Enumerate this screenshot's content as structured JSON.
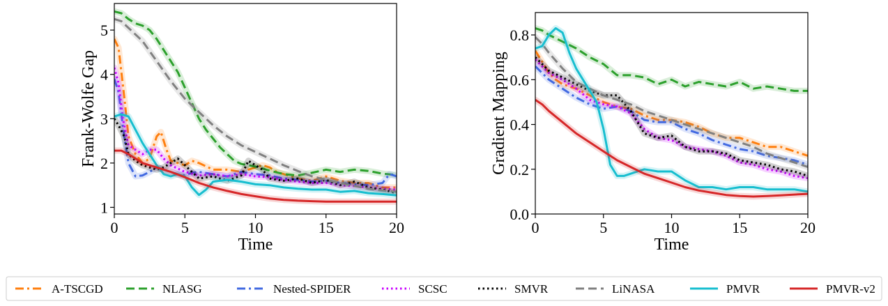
{
  "legend": {
    "position": "bottom",
    "entries": [
      {
        "name": "A-TSCGD",
        "color": "#ff7f0e",
        "dash": "dashdot"
      },
      {
        "name": "NLASG",
        "color": "#2ca02c",
        "dash": "dashed"
      },
      {
        "name": "Nested-SPIDER",
        "color": "#4169e1",
        "dash": "dashdot"
      },
      {
        "name": "SCSC",
        "color": "#c800ff",
        "dash": "dotted"
      },
      {
        "name": "SMVR",
        "color": "#000000",
        "dash": "dotted"
      },
      {
        "name": "LiNASA",
        "color": "#808080",
        "dash": "dashed"
      },
      {
        "name": "PMVR",
        "color": "#17becf",
        "dash": "solid"
      },
      {
        "name": "PMVR-v2",
        "color": "#d62728",
        "dash": "solid"
      }
    ]
  },
  "chart_data": [
    {
      "type": "line",
      "xlabel": "Time",
      "ylabel": "Frank-Wolfe Gap",
      "xlim": [
        0,
        20
      ],
      "ylim": [
        0.85,
        5.6
      ],
      "xticks": [
        0,
        5,
        10,
        15,
        20
      ],
      "yticks": [
        1,
        2,
        3,
        4,
        5
      ],
      "grid": false,
      "series": [
        {
          "name": "A-TSCGD",
          "x": [
            0,
            0.3,
            0.7,
            1,
            1.5,
            2,
            2.5,
            3,
            3.3,
            3.7,
            4,
            4.5,
            5,
            5.5,
            6,
            7,
            8,
            9,
            10,
            10.5,
            11,
            11.5,
            12,
            13,
            14,
            15,
            16,
            17,
            18,
            19,
            20
          ],
          "y": [
            4.8,
            4.6,
            3.5,
            2.6,
            2.2,
            2.0,
            2.1,
            2.6,
            2.7,
            2.3,
            2.05,
            2.0,
            1.95,
            2.05,
            2.0,
            1.85,
            1.85,
            1.8,
            1.9,
            1.95,
            1.9,
            1.8,
            1.75,
            1.65,
            1.6,
            1.7,
            1.6,
            1.55,
            1.55,
            1.45,
            1.45
          ]
        },
        {
          "name": "NLASG",
          "x": [
            0,
            0.5,
            1,
            1.5,
            2,
            2.5,
            3,
            3.5,
            4,
            4.5,
            5,
            5.5,
            6,
            6.5,
            7,
            7.5,
            8,
            8.5,
            9,
            10,
            11,
            12,
            13,
            14,
            15,
            16,
            17,
            18,
            19,
            20
          ],
          "y": [
            5.42,
            5.38,
            5.25,
            5.15,
            5.1,
            5.0,
            4.8,
            4.55,
            4.3,
            4.05,
            3.7,
            3.35,
            3.0,
            2.75,
            2.55,
            2.35,
            2.2,
            2.05,
            1.98,
            1.92,
            1.83,
            1.75,
            1.72,
            1.78,
            1.85,
            1.8,
            1.85,
            1.82,
            1.76,
            1.73
          ]
        },
        {
          "name": "Nested-SPIDER",
          "x": [
            0,
            0.3,
            0.7,
            1,
            1.5,
            2,
            2.5,
            3,
            3.5,
            4,
            4.5,
            5,
            5.5,
            6,
            7,
            8,
            9,
            10,
            11,
            12,
            13,
            14,
            15,
            16,
            17,
            18,
            19,
            19.5,
            20
          ],
          "y": [
            3.9,
            3.6,
            2.6,
            2.0,
            1.7,
            1.72,
            1.8,
            1.9,
            1.85,
            1.8,
            1.75,
            1.72,
            1.78,
            1.8,
            1.75,
            1.7,
            1.8,
            1.75,
            1.72,
            1.65,
            1.62,
            1.58,
            1.6,
            1.55,
            1.52,
            1.5,
            1.55,
            1.75,
            1.7
          ]
        },
        {
          "name": "SCSC",
          "x": [
            0,
            0.3,
            0.6,
            1,
            1.5,
            2,
            2.5,
            3,
            3.5,
            4,
            5,
            6,
            7,
            8,
            9,
            10,
            11,
            12,
            13,
            14,
            15,
            16,
            17,
            18,
            19,
            20
          ],
          "y": [
            4.15,
            3.8,
            3.0,
            2.4,
            2.3,
            2.2,
            2.3,
            2.3,
            2.1,
            1.95,
            1.8,
            1.72,
            1.75,
            1.7,
            1.75,
            1.7,
            1.68,
            1.62,
            1.58,
            1.55,
            1.55,
            1.5,
            1.48,
            1.45,
            1.42,
            1.4
          ]
        },
        {
          "name": "SMVR",
          "x": [
            0,
            0.3,
            0.7,
            1,
            1.5,
            2,
            2.5,
            3,
            3.5,
            4,
            4.5,
            5,
            6,
            7,
            8,
            9,
            9.5,
            10,
            10.5,
            11,
            12,
            13,
            14,
            15,
            16,
            17,
            18,
            19,
            20
          ],
          "y": [
            3.0,
            2.85,
            2.6,
            2.2,
            2.05,
            1.95,
            1.9,
            1.85,
            1.9,
            2.0,
            2.1,
            1.95,
            1.65,
            1.7,
            1.6,
            1.72,
            2.05,
            1.95,
            1.85,
            1.65,
            1.6,
            1.65,
            1.55,
            1.62,
            1.5,
            1.58,
            1.45,
            1.4,
            1.32
          ]
        },
        {
          "name": "LiNASA",
          "x": [
            0,
            0.5,
            1,
            2,
            3,
            4,
            5,
            6,
            7,
            8,
            9,
            10,
            11,
            12,
            13,
            14,
            15,
            16,
            17,
            18,
            19,
            20
          ],
          "y": [
            5.25,
            5.2,
            5.05,
            4.75,
            4.3,
            3.85,
            3.45,
            3.15,
            2.85,
            2.6,
            2.4,
            2.25,
            2.1,
            1.95,
            1.82,
            1.7,
            1.62,
            1.55,
            1.48,
            1.42,
            1.38,
            1.35
          ]
        },
        {
          "name": "PMVR",
          "x": [
            0,
            0.5,
            1,
            1.5,
            2,
            2.5,
            3,
            3.5,
            4,
            4.5,
            5,
            5.5,
            6,
            6.5,
            7,
            8,
            9,
            10,
            11,
            12,
            13,
            14,
            15,
            16,
            17,
            18,
            19,
            20
          ],
          "y": [
            3.05,
            3.1,
            3.05,
            2.75,
            2.45,
            2.2,
            1.95,
            1.75,
            1.7,
            1.75,
            1.7,
            1.45,
            1.28,
            1.4,
            1.58,
            1.62,
            1.58,
            1.52,
            1.5,
            1.45,
            1.42,
            1.4,
            1.4,
            1.35,
            1.37,
            1.32,
            1.3,
            1.27
          ]
        },
        {
          "name": "PMVR-v2",
          "x": [
            0,
            0.5,
            1,
            1.5,
            2,
            3,
            4,
            5,
            6,
            7,
            8,
            9,
            10,
            11,
            12,
            13,
            14,
            15,
            16,
            17,
            18,
            19,
            20
          ],
          "y": [
            2.28,
            2.28,
            2.2,
            2.1,
            2.0,
            1.9,
            1.8,
            1.68,
            1.55,
            1.45,
            1.37,
            1.3,
            1.25,
            1.2,
            1.17,
            1.15,
            1.14,
            1.13,
            1.13,
            1.13,
            1.13,
            1.13,
            1.13
          ]
        }
      ]
    },
    {
      "type": "line",
      "xlabel": "Time",
      "ylabel": "Gradient Mapping",
      "xlim": [
        0,
        20
      ],
      "ylim": [
        0.0,
        0.9
      ],
      "xticks": [
        0,
        5,
        10,
        15,
        20
      ],
      "yticks": [
        "0.0",
        "0.2",
        "0.4",
        "0.6",
        "0.8"
      ],
      "grid": false,
      "series": [
        {
          "name": "A-TSCGD",
          "x": [
            0,
            0.5,
            1,
            1.5,
            2,
            3,
            4,
            5,
            6,
            7,
            8,
            9,
            10,
            11,
            12,
            13,
            14,
            15,
            16,
            17,
            18,
            19,
            20
          ],
          "y": [
            0.73,
            0.68,
            0.63,
            0.6,
            0.58,
            0.56,
            0.53,
            0.5,
            0.48,
            0.47,
            0.44,
            0.42,
            0.42,
            0.41,
            0.39,
            0.36,
            0.34,
            0.34,
            0.32,
            0.3,
            0.3,
            0.28,
            0.26
          ]
        },
        {
          "name": "NLASG",
          "x": [
            0,
            0.5,
            1,
            2,
            3,
            4,
            5,
            6,
            7,
            8,
            9,
            10,
            11,
            12,
            13,
            14,
            15,
            16,
            17,
            18,
            19,
            20
          ],
          "y": [
            0.83,
            0.82,
            0.8,
            0.77,
            0.74,
            0.7,
            0.67,
            0.62,
            0.62,
            0.61,
            0.58,
            0.6,
            0.57,
            0.59,
            0.58,
            0.57,
            0.59,
            0.56,
            0.57,
            0.56,
            0.55,
            0.55
          ]
        },
        {
          "name": "Nested-SPIDER",
          "x": [
            0,
            0.5,
            1,
            2,
            3,
            4,
            5,
            6,
            7,
            8,
            9,
            10,
            11,
            12,
            13,
            14,
            15,
            16,
            17,
            18,
            19,
            20
          ],
          "y": [
            0.66,
            0.63,
            0.6,
            0.56,
            0.52,
            0.49,
            0.47,
            0.48,
            0.46,
            0.42,
            0.41,
            0.41,
            0.38,
            0.36,
            0.33,
            0.31,
            0.29,
            0.28,
            0.26,
            0.25,
            0.24,
            0.22
          ]
        },
        {
          "name": "SCSC",
          "x": [
            0,
            0.5,
            1,
            2,
            3,
            4,
            5,
            6,
            7,
            8,
            9,
            10,
            11,
            12,
            13,
            14,
            15,
            16,
            17,
            18,
            19,
            20
          ],
          "y": [
            0.69,
            0.66,
            0.63,
            0.6,
            0.56,
            0.51,
            0.49,
            0.48,
            0.45,
            0.38,
            0.34,
            0.33,
            0.3,
            0.29,
            0.28,
            0.26,
            0.23,
            0.22,
            0.2,
            0.19,
            0.17,
            0.16
          ]
        },
        {
          "name": "SMVR",
          "x": [
            0,
            0.5,
            1,
            2,
            3,
            4,
            5,
            6,
            7,
            8,
            9,
            10,
            11,
            12,
            13,
            14,
            15,
            16,
            17,
            18,
            19,
            20
          ],
          "y": [
            0.7,
            0.67,
            0.64,
            0.61,
            0.58,
            0.55,
            0.53,
            0.53,
            0.46,
            0.36,
            0.34,
            0.35,
            0.3,
            0.28,
            0.28,
            0.27,
            0.24,
            0.23,
            0.22,
            0.2,
            0.19,
            0.17
          ]
        },
        {
          "name": "LiNASA",
          "x": [
            0,
            0.5,
            1,
            2,
            3,
            4,
            5,
            6,
            7,
            8,
            9,
            10,
            11,
            12,
            13,
            14,
            15,
            16,
            17,
            18,
            19,
            20
          ],
          "y": [
            0.79,
            0.76,
            0.72,
            0.65,
            0.59,
            0.56,
            0.53,
            0.51,
            0.49,
            0.46,
            0.44,
            0.42,
            0.4,
            0.38,
            0.36,
            0.34,
            0.32,
            0.3,
            0.27,
            0.25,
            0.23,
            0.21
          ]
        },
        {
          "name": "PMVR",
          "x": [
            0,
            0.5,
            1,
            1.5,
            2,
            2.5,
            3,
            3.5,
            4,
            4.5,
            5,
            5.5,
            6,
            6.5,
            7,
            7.5,
            8,
            9,
            10,
            11,
            12,
            13,
            14,
            15,
            16,
            17,
            18,
            19,
            20
          ],
          "y": [
            0.74,
            0.75,
            0.8,
            0.83,
            0.81,
            0.72,
            0.65,
            0.6,
            0.55,
            0.5,
            0.38,
            0.22,
            0.17,
            0.17,
            0.18,
            0.19,
            0.2,
            0.19,
            0.19,
            0.15,
            0.12,
            0.12,
            0.11,
            0.12,
            0.12,
            0.11,
            0.11,
            0.11,
            0.1
          ]
        },
        {
          "name": "PMVR-v2",
          "x": [
            0,
            0.5,
            1,
            2,
            3,
            4,
            5,
            6,
            7,
            8,
            9,
            10,
            11,
            12,
            13,
            14,
            15,
            16,
            17,
            18,
            19,
            20
          ],
          "y": [
            0.51,
            0.49,
            0.46,
            0.41,
            0.36,
            0.32,
            0.28,
            0.24,
            0.21,
            0.18,
            0.16,
            0.14,
            0.12,
            0.105,
            0.095,
            0.085,
            0.08,
            0.078,
            0.08,
            0.083,
            0.087,
            0.09
          ]
        }
      ]
    }
  ]
}
